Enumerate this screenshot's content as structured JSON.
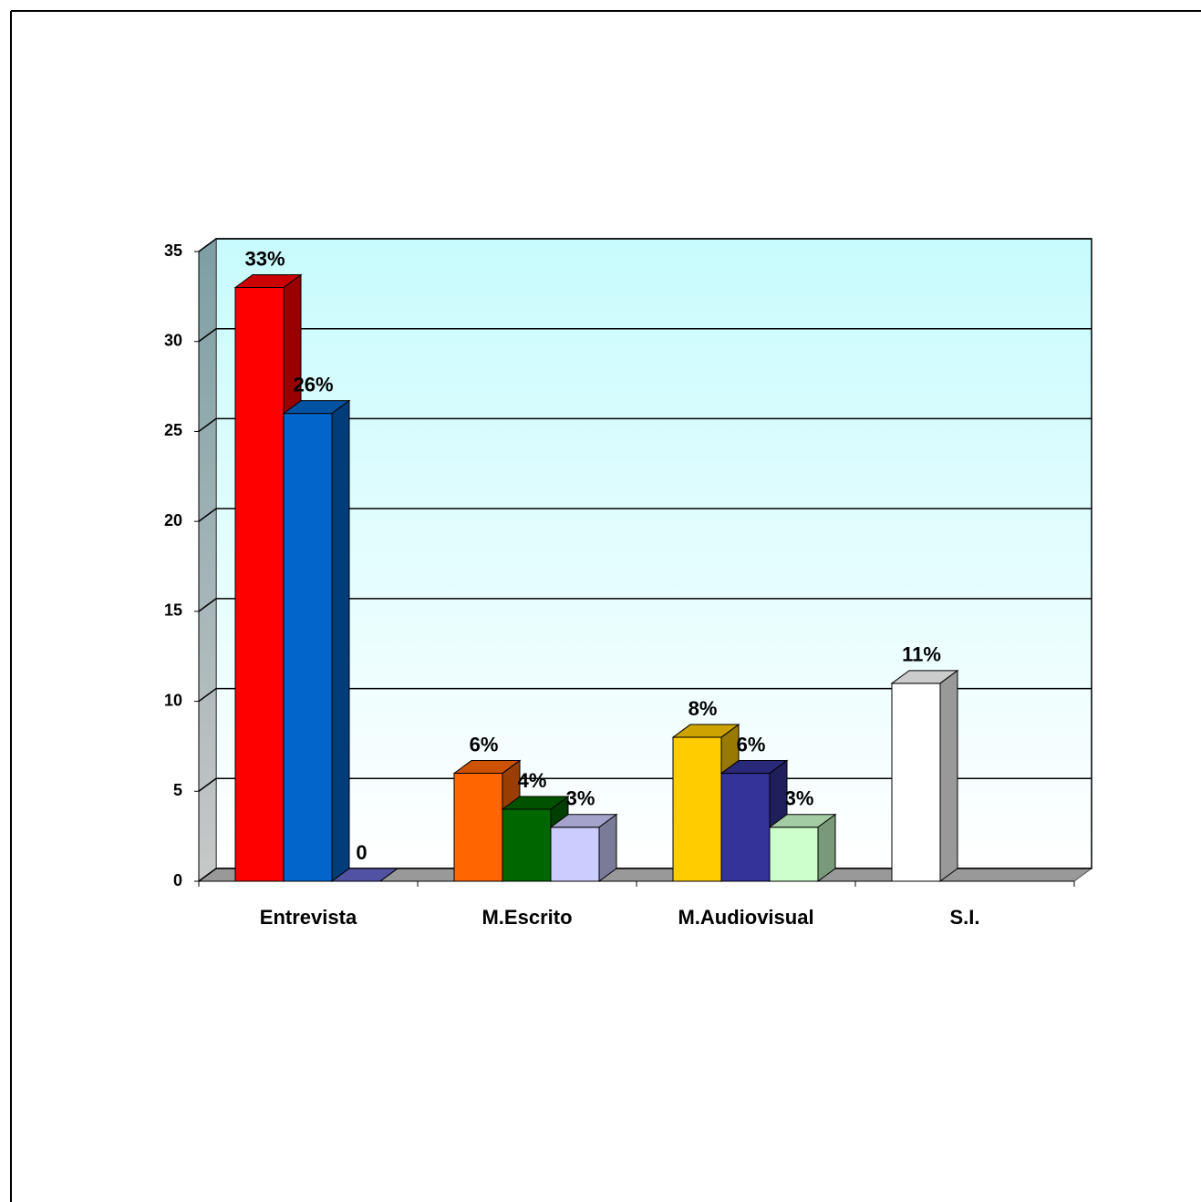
{
  "chart_data": {
    "type": "bar3d",
    "categories": [
      "Entrevista",
      "M.Escrito",
      "M.Audiovisual",
      "S.I."
    ],
    "series": [
      {
        "values": [
          33,
          6,
          8,
          11
        ],
        "value_labels": [
          "33%",
          "6%",
          "8%",
          "11%"
        ],
        "colors": [
          "#ff0000",
          "#ff6600",
          "#ffcc00",
          "#ffffff"
        ]
      },
      {
        "values": [
          26,
          4,
          6,
          null
        ],
        "value_labels": [
          "26%",
          "4%",
          "6%",
          null
        ],
        "colors": [
          "#0066cc",
          "#006600",
          "#333399",
          null
        ]
      },
      {
        "values": [
          0,
          3,
          3,
          null
        ],
        "value_labels": [
          "0",
          "3%",
          "3%",
          null
        ],
        "colors": [
          "#6666cc",
          "#ccccff",
          "#ccffcc",
          null
        ]
      }
    ],
    "ylim": [
      0,
      35
    ],
    "yticks": [
      0,
      5,
      10,
      15,
      20,
      25,
      30,
      35
    ],
    "grid": true
  }
}
